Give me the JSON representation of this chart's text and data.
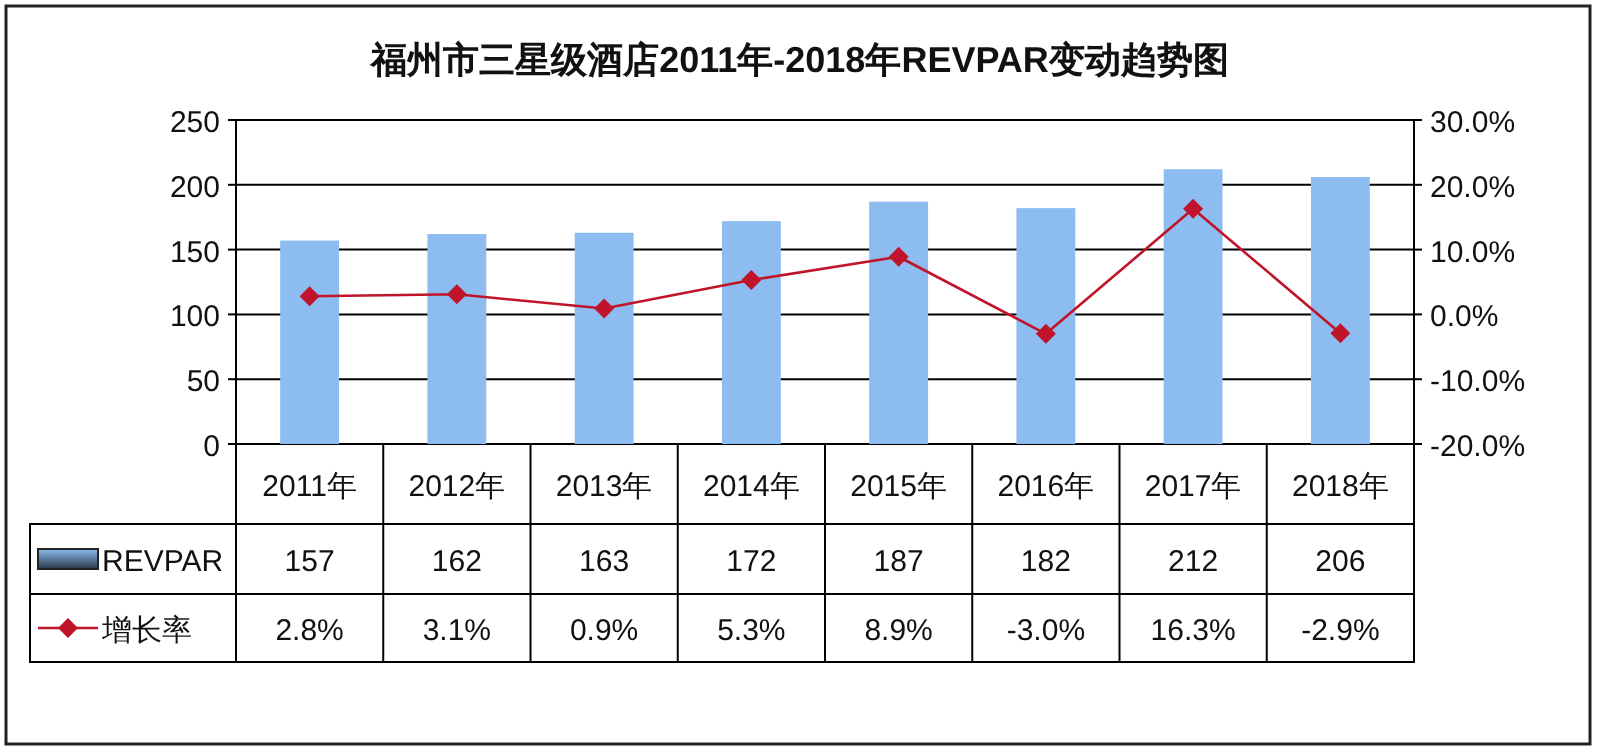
{
  "chart_data": {
    "type": "bar",
    "title": "福州市三星级酒店2011年-2018年REVPAR变动趋势图",
    "categories": [
      "2011年",
      "2012年",
      "2013年",
      "2014年",
      "2015年",
      "2016年",
      "2017年",
      "2018年"
    ],
    "series": [
      {
        "name": "REVPAR",
        "color": "#8dbdf0",
        "values": [
          157,
          162,
          163,
          172,
          187,
          182,
          212,
          206
        ],
        "value_labels": [
          "157",
          "162",
          "163",
          "172",
          "187",
          "182",
          "212",
          "206"
        ]
      },
      {
        "name": "增长率",
        "type": "line",
        "axis": "y2",
        "color": "#c0142a",
        "marker": "diamond",
        "line_style": "solid",
        "values": [
          2.8,
          3.1,
          0.9,
          5.3,
          8.9,
          -3.0,
          16.3,
          -2.9
        ],
        "value_labels": [
          "2.8%",
          "3.1%",
          "0.9%",
          "5.3%",
          "8.9%",
          "-3.0%",
          "16.3%",
          "-2.9%"
        ]
      }
    ],
    "ylim": [
      0,
      250
    ],
    "yticks": [
      0,
      50,
      100,
      150,
      200,
      250
    ],
    "y2lim": [
      -20,
      30
    ],
    "y2ticks": [
      {
        "value": -20,
        "label": "-20.0%"
      },
      {
        "value": -10,
        "label": "-10.0%"
      },
      {
        "value": 0,
        "label": "0.0%"
      },
      {
        "value": 10,
        "label": "10.0%"
      },
      {
        "value": 20,
        "label": "20.0%"
      },
      {
        "value": 30,
        "label": "30.0%"
      }
    ],
    "grid": "y",
    "legend": "bottom left"
  }
}
